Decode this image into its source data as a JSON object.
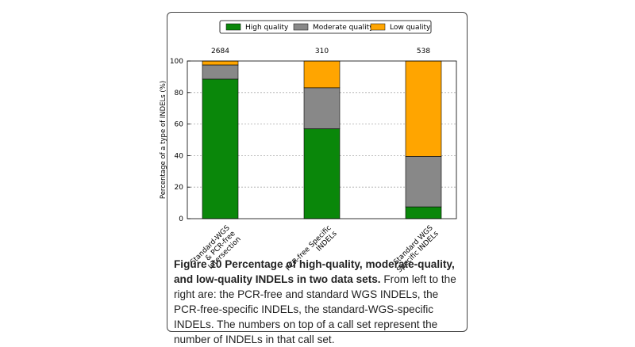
{
  "chart_data": {
    "type": "stacked_bar",
    "categories": [
      [
        "Standard-WGS",
        "& PCR-free",
        "Intersection"
      ],
      [
        "PCR-free Specific",
        "INDELs"
      ],
      [
        "Standard WGS",
        "Specific INDELs"
      ]
    ],
    "series": [
      {
        "name": "High quality",
        "color": "#0a870a",
        "values": [
          88.5,
          57,
          7.5
        ]
      },
      {
        "name": "Moderate quality",
        "color": "#888888",
        "values": [
          9,
          26,
          32
        ]
      },
      {
        "name": "Low quality",
        "color": "#ffa500",
        "values": [
          2.5,
          17,
          60.5
        ]
      }
    ],
    "counts": [
      2684,
      310,
      538
    ],
    "ylabel": "Percentage of a type of INDELs (%)",
    "ylim": [
      0,
      100
    ],
    "yticks": [
      0,
      20,
      40,
      60,
      80,
      100
    ],
    "grid": true,
    "legend": "top"
  },
  "caption": {
    "title": "Figure 10 Percentage of high-quality, moderate-quality, and low-quality INDELs in two data sets.",
    "text": "From left to the right are: the PCR-free and standard WGS INDELs, the PCR-free-specific INDELs, the standard-WGS-specific INDELs. The numbers on top of a call set represent the number of INDELs in that call set."
  }
}
